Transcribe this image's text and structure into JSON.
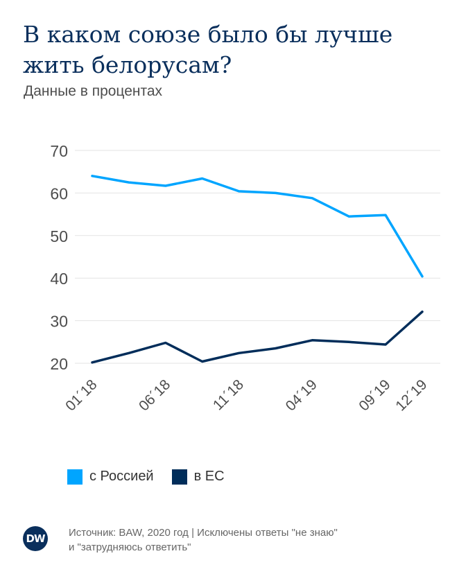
{
  "title": "В каком союзе было бы лучше жить белорусам?",
  "subtitle": "Данные в процентах",
  "legend": [
    {
      "label": "с Россией",
      "color": "#00a5ff"
    },
    {
      "label": "в ЕС",
      "color": "#002d5a"
    }
  ],
  "source": {
    "line1": "Источник: BAW, 2020 год | Исключены ответы \"не знаю\"",
    "line2": "и \"затрудняюсь ответить\""
  },
  "logo": "DW",
  "chart_data": {
    "type": "line",
    "ylim": [
      20,
      70
    ],
    "yticks": [
      20,
      30,
      40,
      50,
      60,
      70
    ],
    "x_tick_labels": [
      "01´18",
      "06´18",
      "11´18",
      "04´19",
      "09´19",
      "12´19"
    ],
    "x_tick_positions": [
      0,
      2,
      4,
      6,
      8,
      9
    ],
    "grid": true,
    "legend_position": "bottom",
    "series": [
      {
        "name": "с Россией",
        "color": "#00a5ff",
        "values": [
          64,
          62.5,
          61.7,
          63.4,
          60.4,
          60,
          58.8,
          54.5,
          54.8,
          40.4
        ]
      },
      {
        "name": "в ЕС",
        "color": "#002d5a",
        "values": [
          20.2,
          22.4,
          24.8,
          20.4,
          22.4,
          23.5,
          25.4,
          25,
          24.4,
          32.1
        ]
      }
    ]
  }
}
